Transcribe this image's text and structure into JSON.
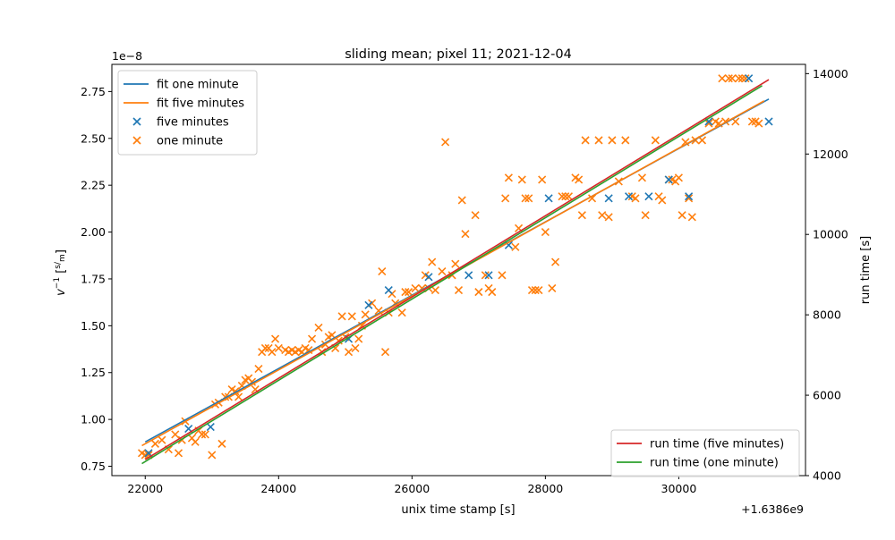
{
  "chart_data": {
    "type": "scatter",
    "title": "sliding mean; pixel 11; 2021-12-04",
    "xlabel": "unix time stamp [s]",
    "ylabel_left": "v⁻¹ [s/m]",
    "ylabel_left_base": "v",
    "ylabel_left_sup": "−1",
    "ylabel_left_unit_num": "s",
    "ylabel_left_unit_den": "m",
    "ylabel_right": "run time [s]",
    "x_offset_text": "+1.6386e9",
    "y_scale_text": "1e−8",
    "xlim": [
      21500,
      31900
    ],
    "ylim_left": [
      0.7,
      2.895
    ],
    "ylim_right": [
      4000,
      14230
    ],
    "x_ticks": [
      22000,
      24000,
      26000,
      28000,
      30000
    ],
    "y_ticks_left": [
      0.75,
      1.0,
      1.25,
      1.5,
      1.75,
      2.0,
      2.25,
      2.5,
      2.75
    ],
    "y_ticks_right": [
      4000,
      6000,
      8000,
      10000,
      12000,
      14000
    ],
    "grid": false,
    "legend_left": {
      "placement": "upper left",
      "entries": [
        "fit one minute",
        "fit five minutes",
        "five minutes",
        "one minute"
      ]
    },
    "legend_right": {
      "placement": "lower right",
      "entries": [
        "run time (five minutes)",
        "run time (one minute)"
      ]
    },
    "colors": {
      "fit_one_minute": "#1f77b4",
      "fit_five_minutes": "#ff7f0e",
      "five_minutes": "#1f77b4",
      "one_minute": "#ff7f0e",
      "run_time_five": "#d62728",
      "run_time_one": "#2ca02c"
    },
    "series": [
      {
        "name": "fit one minute",
        "kind": "line",
        "axis": "left",
        "points": [
          [
            22000,
            0.88
          ],
          [
            31350,
            2.71
          ]
        ]
      },
      {
        "name": "fit five minutes",
        "kind": "line",
        "axis": "left",
        "points": [
          [
            21950,
            0.86
          ],
          [
            31280,
            2.7
          ]
        ]
      },
      {
        "name": "run time (five minutes)",
        "kind": "line",
        "axis": "right",
        "points": [
          [
            22000,
            4400
          ],
          [
            31350,
            13850
          ]
        ]
      },
      {
        "name": "run time (one minute)",
        "kind": "line",
        "axis": "right",
        "points": [
          [
            21950,
            4300
          ],
          [
            31250,
            13700
          ]
        ]
      },
      {
        "name": "five minutes",
        "kind": "scatter",
        "marker": "x",
        "axis": "left",
        "points": [
          [
            22050,
            0.82
          ],
          [
            22650,
            0.95
          ],
          [
            22980,
            0.96
          ],
          [
            25050,
            1.43
          ],
          [
            25350,
            1.61
          ],
          [
            25650,
            1.69
          ],
          [
            26250,
            1.76
          ],
          [
            26850,
            1.77
          ],
          [
            27150,
            1.77
          ],
          [
            27450,
            1.93
          ],
          [
            28050,
            2.18
          ],
          [
            28950,
            2.18
          ],
          [
            29250,
            2.19
          ],
          [
            29550,
            2.19
          ],
          [
            29850,
            2.28
          ],
          [
            30150,
            2.19
          ],
          [
            30450,
            2.59
          ],
          [
            31050,
            2.82
          ],
          [
            31350,
            2.59
          ]
        ]
      },
      {
        "name": "one minute",
        "kind": "scatter",
        "marker": "x",
        "axis": "left",
        "points": [
          [
            21950,
            0.82
          ],
          [
            22000,
            0.81
          ],
          [
            22050,
            0.81
          ],
          [
            22150,
            0.87
          ],
          [
            22250,
            0.89
          ],
          [
            22350,
            0.84
          ],
          [
            22450,
            0.92
          ],
          [
            22500,
            0.82
          ],
          [
            22550,
            0.89
          ],
          [
            22600,
            0.99
          ],
          [
            22700,
            0.9
          ],
          [
            22750,
            0.88
          ],
          [
            22800,
            0.94
          ],
          [
            22850,
            0.92
          ],
          [
            22900,
            0.92
          ],
          [
            23000,
            0.81
          ],
          [
            23050,
            1.08
          ],
          [
            23100,
            1.09
          ],
          [
            23150,
            0.87
          ],
          [
            23200,
            1.12
          ],
          [
            23250,
            1.12
          ],
          [
            23300,
            1.16
          ],
          [
            23350,
            1.15
          ],
          [
            23400,
            1.12
          ],
          [
            23450,
            1.18
          ],
          [
            23500,
            1.21
          ],
          [
            23550,
            1.22
          ],
          [
            23600,
            1.2
          ],
          [
            23650,
            1.16
          ],
          [
            23700,
            1.27
          ],
          [
            23750,
            1.36
          ],
          [
            23800,
            1.38
          ],
          [
            23850,
            1.38
          ],
          [
            23900,
            1.36
          ],
          [
            23950,
            1.43
          ],
          [
            24000,
            1.38
          ],
          [
            24100,
            1.37
          ],
          [
            24150,
            1.36
          ],
          [
            24200,
            1.37
          ],
          [
            24250,
            1.36
          ],
          [
            24300,
            1.37
          ],
          [
            24350,
            1.36
          ],
          [
            24400,
            1.38
          ],
          [
            24450,
            1.37
          ],
          [
            24500,
            1.43
          ],
          [
            24600,
            1.49
          ],
          [
            24650,
            1.36
          ],
          [
            24700,
            1.4
          ],
          [
            24750,
            1.44
          ],
          [
            24800,
            1.45
          ],
          [
            24850,
            1.38
          ],
          [
            24900,
            1.42
          ],
          [
            24950,
            1.55
          ],
          [
            25000,
            1.44
          ],
          [
            25050,
            1.36
          ],
          [
            25100,
            1.55
          ],
          [
            25150,
            1.38
          ],
          [
            25200,
            1.43
          ],
          [
            25250,
            1.5
          ],
          [
            25300,
            1.56
          ],
          [
            25400,
            1.62
          ],
          [
            25500,
            1.58
          ],
          [
            25550,
            1.79
          ],
          [
            25600,
            1.36
          ],
          [
            25650,
            1.57
          ],
          [
            25700,
            1.67
          ],
          [
            25750,
            1.62
          ],
          [
            25850,
            1.57
          ],
          [
            25900,
            1.68
          ],
          [
            25950,
            1.68
          ],
          [
            26050,
            1.7
          ],
          [
            26150,
            1.7
          ],
          [
            26200,
            1.77
          ],
          [
            26250,
            1.7
          ],
          [
            26300,
            1.84
          ],
          [
            26350,
            1.69
          ],
          [
            26450,
            1.79
          ],
          [
            26500,
            2.48
          ],
          [
            26600,
            1.77
          ],
          [
            26650,
            1.83
          ],
          [
            26700,
            1.69
          ],
          [
            26750,
            2.17
          ],
          [
            26800,
            1.99
          ],
          [
            26950,
            2.09
          ],
          [
            27000,
            1.68
          ],
          [
            27100,
            1.77
          ],
          [
            27150,
            1.7
          ],
          [
            27200,
            1.68
          ],
          [
            27350,
            1.77
          ],
          [
            27400,
            2.18
          ],
          [
            27450,
            2.29
          ],
          [
            27550,
            1.92
          ],
          [
            27600,
            2.02
          ],
          [
            27650,
            2.28
          ],
          [
            27700,
            2.18
          ],
          [
            27750,
            2.18
          ],
          [
            27800,
            1.69
          ],
          [
            27850,
            1.69
          ],
          [
            27900,
            1.69
          ],
          [
            27950,
            2.28
          ],
          [
            28000,
            2.0
          ],
          [
            28100,
            1.7
          ],
          [
            28150,
            1.84
          ],
          [
            28250,
            2.19
          ],
          [
            28300,
            2.19
          ],
          [
            28350,
            2.19
          ],
          [
            28450,
            2.29
          ],
          [
            28500,
            2.28
          ],
          [
            28550,
            2.09
          ],
          [
            28600,
            2.49
          ],
          [
            28700,
            2.18
          ],
          [
            28800,
            2.49
          ],
          [
            28850,
            2.09
          ],
          [
            28950,
            2.08
          ],
          [
            29000,
            2.49
          ],
          [
            29100,
            2.27
          ],
          [
            29200,
            2.49
          ],
          [
            29300,
            2.19
          ],
          [
            29350,
            2.18
          ],
          [
            29450,
            2.29
          ],
          [
            29500,
            2.09
          ],
          [
            29650,
            2.49
          ],
          [
            29700,
            2.19
          ],
          [
            29750,
            2.17
          ],
          [
            29850,
            2.28
          ],
          [
            29900,
            2.28
          ],
          [
            29950,
            2.27
          ],
          [
            30000,
            2.29
          ],
          [
            30050,
            2.09
          ],
          [
            30100,
            2.48
          ],
          [
            30150,
            2.18
          ],
          [
            30200,
            2.08
          ],
          [
            30250,
            2.49
          ],
          [
            30350,
            2.49
          ],
          [
            30450,
            2.58
          ],
          [
            30550,
            2.59
          ],
          [
            30600,
            2.58
          ],
          [
            30650,
            2.82
          ],
          [
            30700,
            2.59
          ],
          [
            30750,
            2.82
          ],
          [
            30800,
            2.82
          ],
          [
            30850,
            2.59
          ],
          [
            30900,
            2.82
          ],
          [
            30950,
            2.82
          ],
          [
            31000,
            2.82
          ],
          [
            31100,
            2.59
          ],
          [
            31150,
            2.59
          ],
          [
            31200,
            2.58
          ]
        ]
      }
    ]
  }
}
